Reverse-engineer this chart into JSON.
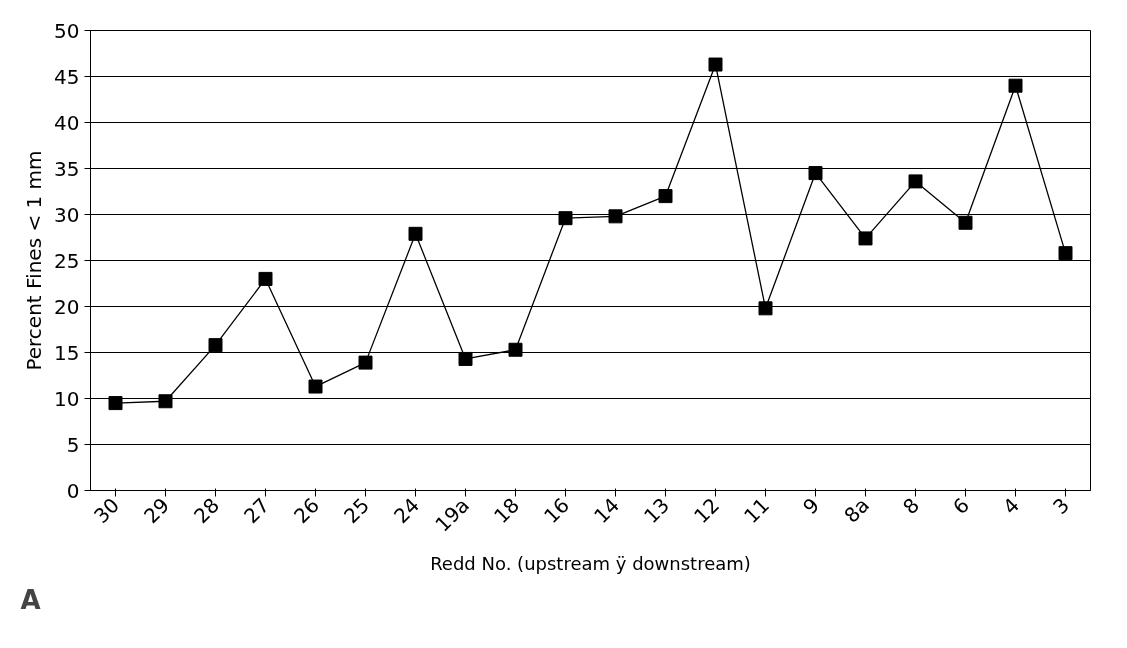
{
  "chart_data": {
    "type": "line",
    "xlabel": "Redd No. (upstream ÿ downstream)",
    "ylabel": "Percent Fines < 1 mm",
    "categories": [
      "30",
      "29",
      "28",
      "27",
      "26",
      "25",
      "24",
      "19a",
      "18",
      "16",
      "14",
      "13",
      "12",
      "11",
      "9",
      "8a",
      "8",
      "6",
      "4",
      "3"
    ],
    "series": [
      {
        "color": "#000000",
        "values": [
          9.5,
          9.7,
          15.8,
          23.0,
          11.3,
          13.9,
          27.9,
          14.3,
          15.3,
          29.6,
          29.8,
          32.0,
          46.3,
          19.8,
          34.5,
          27.4,
          33.6,
          29.1,
          44.0,
          25.8
        ]
      }
    ],
    "ylim": [
      0,
      50
    ],
    "yticks": [
      0,
      5,
      10,
      15,
      20,
      25,
      30,
      35,
      40,
      45,
      50
    ],
    "grid": "y",
    "marker": "square",
    "line_style": "solid",
    "annotations": [
      "A"
    ]
  }
}
